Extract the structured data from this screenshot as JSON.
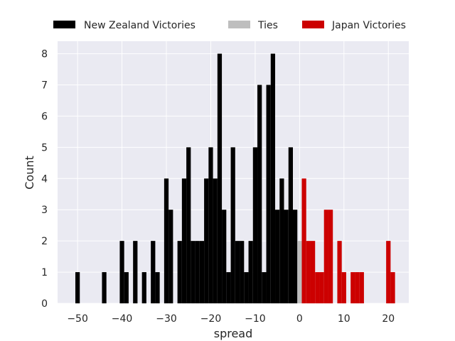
{
  "chart_data": {
    "type": "bar",
    "xlabel": "spread",
    "ylabel": "Count",
    "xlim": [
      -54.5,
      24.6
    ],
    "ylim": [
      0,
      8.4
    ],
    "x_ticks": [
      -50,
      -40,
      -30,
      -20,
      -10,
      0,
      10,
      20
    ],
    "x_tick_labels": [
      "−50",
      "−40",
      "−30",
      "−20",
      "−10",
      "0",
      "10",
      "20"
    ],
    "y_ticks": [
      0,
      1,
      2,
      3,
      4,
      5,
      6,
      7,
      8
    ],
    "grid": true,
    "legend_position": "top",
    "colors": {
      "background": "#eaeaf2",
      "grid": "#ffffff",
      "new_zealand": "#000000",
      "ties": "#bebebe",
      "japan": "#cc0000"
    },
    "series": [
      {
        "name": "New Zealand Victories",
        "color": "#000000",
        "x": [
          -50,
          -44,
          -40,
          -39,
          -37,
          -35,
          -33,
          -32,
          -30,
          -29,
          -27,
          -26,
          -25,
          -24,
          -23,
          -22,
          -21,
          -20,
          -19,
          -18,
          -17,
          -16,
          -15,
          -14,
          -13,
          -12,
          -11,
          -10,
          -9,
          -8,
          -7,
          -6,
          -5,
          -4,
          -3,
          -2,
          -1
        ],
        "values": [
          1,
          1,
          2,
          1,
          2,
          1,
          2,
          1,
          4,
          3,
          2,
          4,
          5,
          2,
          2,
          2,
          4,
          5,
          4,
          8,
          3,
          1,
          5,
          2,
          2,
          1,
          2,
          5,
          7,
          1,
          7,
          8,
          3,
          4,
          3,
          5,
          3
        ]
      },
      {
        "name": "Ties",
        "color": "#bebebe",
        "x": [
          0
        ],
        "values": [
          2
        ]
      },
      {
        "name": "Japan Victories",
        "color": "#cc0000",
        "x": [
          1,
          2,
          3,
          4,
          5,
          6,
          7,
          9,
          10,
          12,
          13,
          14,
          20,
          21
        ],
        "values": [
          4,
          2,
          2,
          1,
          1,
          3,
          3,
          2,
          1,
          1,
          1,
          1,
          2,
          1
        ]
      }
    ]
  }
}
